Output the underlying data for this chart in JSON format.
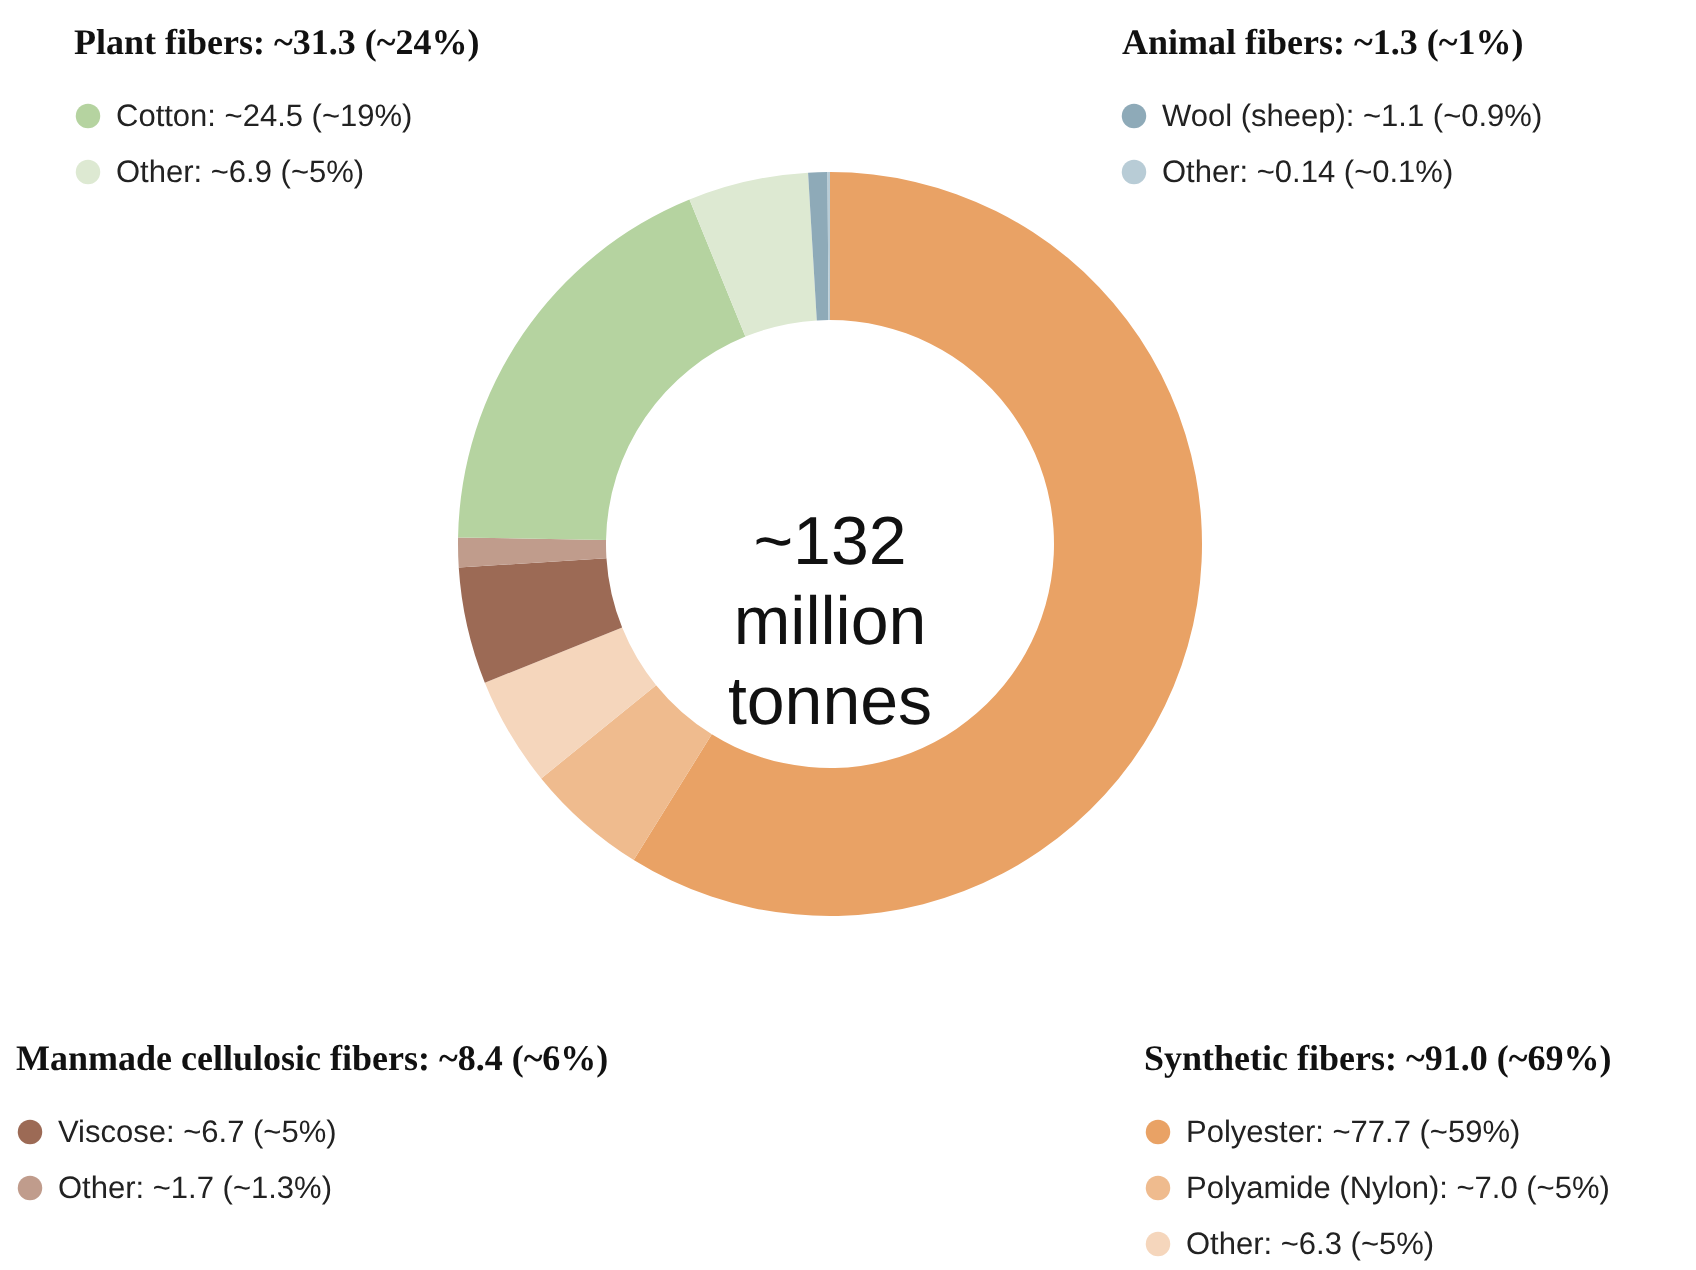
{
  "chart_data": {
    "type": "donut",
    "categories": [
      "Polyester: ~77.7 (~59%)",
      "Polyamide (Nylon): ~7.0 (~5%)",
      "Other: ~6.3 (~5%)",
      "Viscose: ~6.7 (~5%)",
      "Other: ~1.7 (~1.3%)",
      "Cotton: ~24.5 (~19%)",
      "Other: ~6.9 (~5%)",
      "Wool (sheep): ~1.1 (~0.9%)",
      "Other: ~0.14 (~0.1%)"
    ],
    "values": [
      77.7,
      7.0,
      6.3,
      6.7,
      1.7,
      24.5,
      6.9,
      1.1,
      0.14
    ],
    "colors": [
      "#e9a265",
      "#efbb8e",
      "#f5d6bc",
      "#9c6a55",
      "#c09c8c",
      "#b5d3a0",
      "#dde9d2",
      "#8eaab8",
      "#b8ccd6"
    ],
    "legend": "bottom left",
    "annotations": [
      "~132 million tonnes",
      "Synthetic fibers: ~91.0 (~69%)",
      "Manmade cellulosic fibers: ~8.4 (~6%)",
      "Plant fibers: ~31.3 (~24%)",
      "Animal fibers: ~1.3 (~1%)"
    ]
  }
}
